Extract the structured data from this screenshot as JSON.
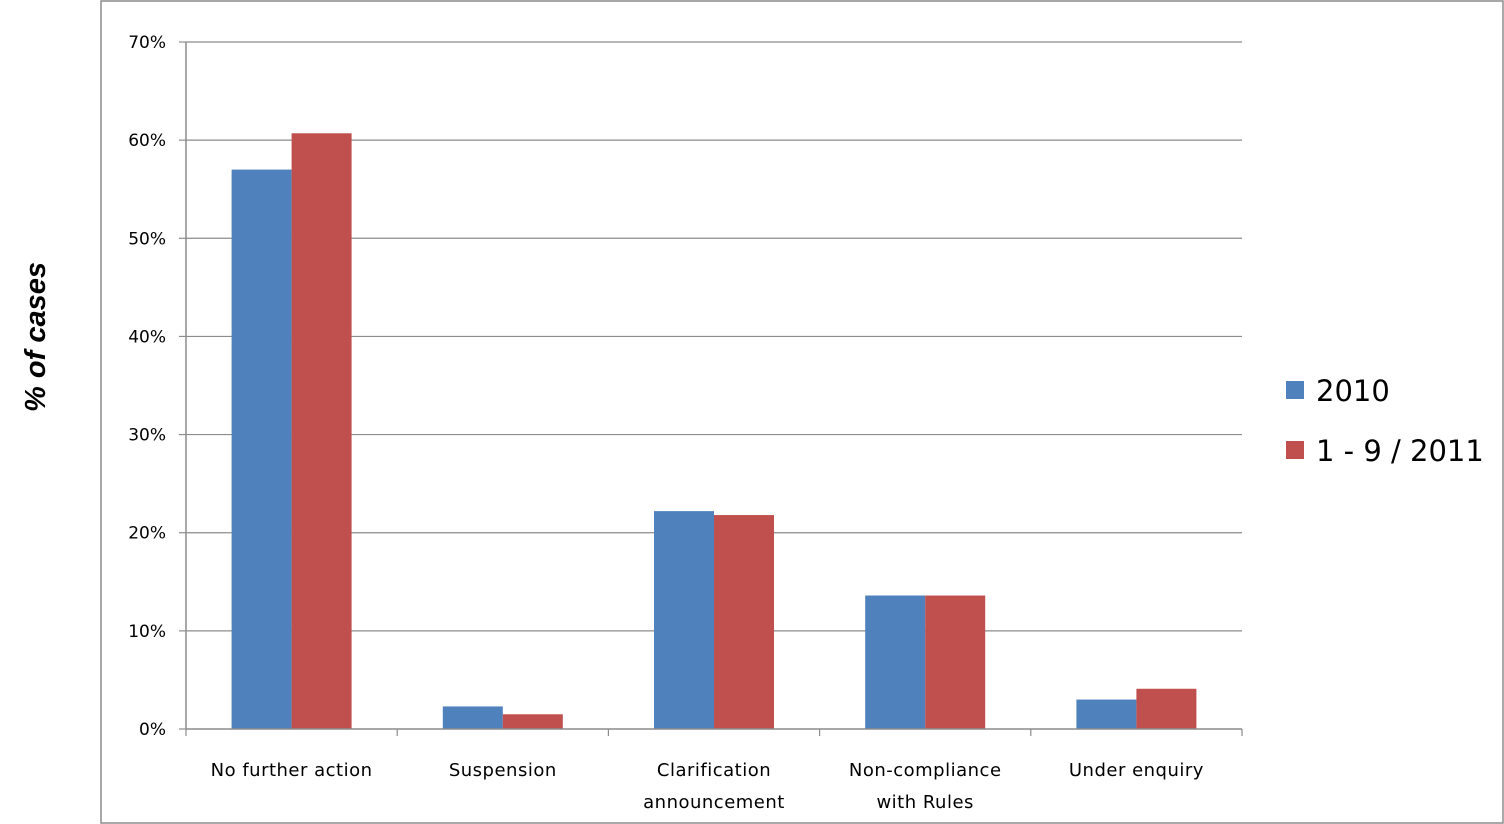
{
  "chart_data": {
    "type": "bar",
    "title": "",
    "xlabel": "",
    "ylabel": "% of cases",
    "ylim": [
      0,
      70
    ],
    "y_ticks": [
      "0%",
      "10%",
      "20%",
      "30%",
      "40%",
      "50%",
      "60%",
      "70%"
    ],
    "grid": true,
    "legend_position": "right",
    "categories": [
      [
        "No further action"
      ],
      [
        "Suspension"
      ],
      [
        "Clarification",
        "announcement"
      ],
      [
        "Non-compliance",
        "with Rules"
      ],
      [
        "Under enquiry"
      ]
    ],
    "series": [
      {
        "name": "2010",
        "color": "#4F81BD",
        "values": [
          57.0,
          2.3,
          22.2,
          13.6,
          3.0
        ]
      },
      {
        "name": "1 - 9 / 2011",
        "color": "#C0504D",
        "values": [
          60.7,
          1.5,
          21.8,
          13.6,
          4.1
        ]
      }
    ]
  }
}
